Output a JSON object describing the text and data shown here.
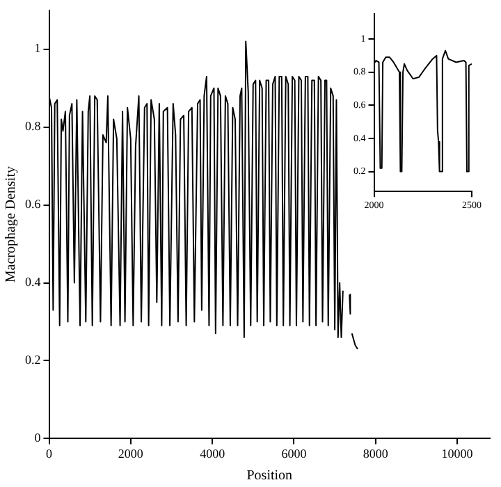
{
  "chart_data": [
    {
      "type": "line",
      "xlabel": "Position",
      "ylabel": "Macrophage Density",
      "color": "#000000",
      "marker": "none",
      "xlim": [
        0,
        10800
      ],
      "ylim": [
        0,
        1.1
      ],
      "xticks": [
        0,
        2000,
        4000,
        6000,
        8000,
        10000
      ],
      "yticks": [
        0,
        0.2,
        0.4,
        0.6,
        0.8,
        1
      ],
      "x": [
        0,
        60,
        100,
        140,
        200,
        260,
        300,
        340,
        400,
        460,
        500,
        560,
        620,
        680,
        760,
        820,
        900,
        960,
        1000,
        1060,
        1120,
        1180,
        1260,
        1320,
        1400,
        1440,
        1520,
        1580,
        1660,
        1740,
        1800,
        1860,
        1920,
        2000,
        2060,
        2120,
        2200,
        2260,
        2340,
        2400,
        2440,
        2500,
        2580,
        2640,
        2700,
        2760,
        2800,
        2900,
        2960,
        3040,
        3100,
        3160,
        3220,
        3300,
        3360,
        3420,
        3500,
        3560,
        3640,
        3700,
        3740,
        3800,
        3860,
        3920,
        3960,
        4040,
        4080,
        4140,
        4200,
        4260,
        4320,
        4380,
        4440,
        4500,
        4560,
        4620,
        4680,
        4720,
        4780,
        4820,
        4880,
        4940,
        5000,
        5060,
        5100,
        5160,
        5220,
        5260,
        5320,
        5380,
        5420,
        5480,
        5540,
        5580,
        5640,
        5700,
        5740,
        5800,
        5860,
        5900,
        5960,
        6020,
        6060,
        6120,
        6180,
        6220,
        6280,
        6340,
        6380,
        6440,
        6500,
        6540,
        6600,
        6660,
        6700,
        6760,
        6800,
        6840,
        6900,
        6960,
        7000,
        7040,
        7080,
        7120,
        7160,
        7200,
        7280,
        7360,
        7380,
        7400,
        7420,
        7500,
        7560
      ],
      "values": [
        0.88,
        0.85,
        0.33,
        0.86,
        0.87,
        0.29,
        0.82,
        0.79,
        0.84,
        0.3,
        0.83,
        0.86,
        0.4,
        0.87,
        0.29,
        0.84,
        0.3,
        0.84,
        0.88,
        0.29,
        0.88,
        0.87,
        0.3,
        0.78,
        0.76,
        0.88,
        0.29,
        0.82,
        0.77,
        0.29,
        0.84,
        0.3,
        0.85,
        0.77,
        0.29,
        0.75,
        0.88,
        0.3,
        0.85,
        0.86,
        0.29,
        0.87,
        0.82,
        0.35,
        0.86,
        0.29,
        0.84,
        0.85,
        0.29,
        0.86,
        0.78,
        0.3,
        0.82,
        0.83,
        0.29,
        0.84,
        0.85,
        0.3,
        0.86,
        0.87,
        0.33,
        0.88,
        0.93,
        0.29,
        0.88,
        0.9,
        0.27,
        0.9,
        0.88,
        0.29,
        0.88,
        0.86,
        0.29,
        0.85,
        0.82,
        0.29,
        0.88,
        0.9,
        0.26,
        1.02,
        0.89,
        0.29,
        0.91,
        0.92,
        0.3,
        0.92,
        0.9,
        0.29,
        0.92,
        0.92,
        0.3,
        0.91,
        0.93,
        0.29,
        0.93,
        0.93,
        0.29,
        0.93,
        0.91,
        0.29,
        0.93,
        0.92,
        0.29,
        0.93,
        0.92,
        0.3,
        0.93,
        0.93,
        0.29,
        0.92,
        0.92,
        0.29,
        0.93,
        0.92,
        0.3,
        0.92,
        0.92,
        0.29,
        0.9,
        0.88,
        0.28,
        0.87,
        0.26,
        0.4,
        0.26,
        0.38,
        null,
        0.37,
        0.32,
        null,
        0.27,
        0.24,
        0.23
      ]
    },
    {
      "type": "line",
      "color": "#000000",
      "marker": "none",
      "xlim": [
        2000,
        2500
      ],
      "ylim": [
        0.08,
        1.15
      ],
      "xticks": [
        2000,
        2500
      ],
      "yticks": [
        0.2,
        0.4,
        0.6,
        0.8,
        1
      ],
      "x": [
        2000,
        2010,
        2025,
        2032,
        2040,
        2045,
        2060,
        2080,
        2100,
        2130,
        2135,
        2142,
        2148,
        2155,
        2170,
        2200,
        2230,
        2260,
        2300,
        2320,
        2325,
        2330,
        2335,
        2345,
        2350,
        2365,
        2380,
        2420,
        2460,
        2470,
        2475,
        2480,
        2485,
        2500
      ],
      "values": [
        0.85,
        0.87,
        0.86,
        0.22,
        0.22,
        0.86,
        0.89,
        0.89,
        0.86,
        0.8,
        0.2,
        0.2,
        0.8,
        0.85,
        0.81,
        0.76,
        0.77,
        0.82,
        0.88,
        0.9,
        0.45,
        0.38,
        0.2,
        0.2,
        0.88,
        0.93,
        0.88,
        0.86,
        0.87,
        0.86,
        0.2,
        0.2,
        0.84,
        0.85
      ]
    }
  ]
}
